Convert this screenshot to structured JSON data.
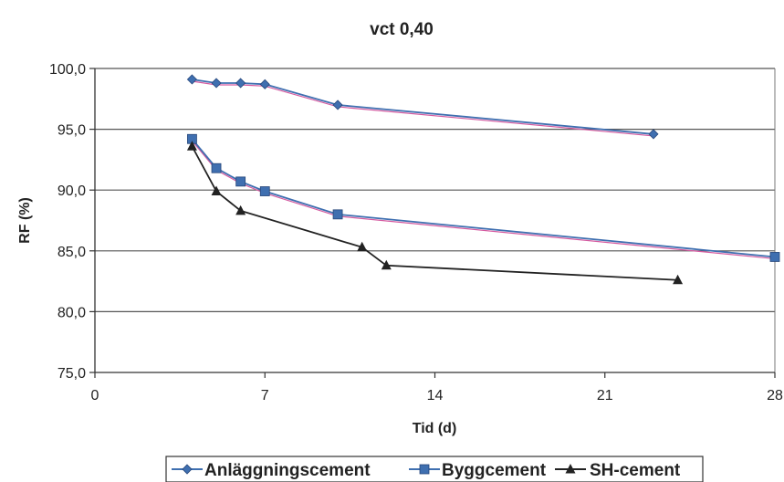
{
  "chart_data": {
    "type": "line",
    "title": "vct 0,40",
    "xlabel": "Tid (d)",
    "ylabel": "RF (%)",
    "xlim": [
      0,
      28
    ],
    "ylim": [
      75,
      100
    ],
    "x_ticks": [
      "0",
      "7",
      "14",
      "21",
      "28"
    ],
    "y_ticks": [
      "75,0",
      "80,0",
      "85,0",
      "90,0",
      "95,0",
      "100,0"
    ],
    "grid": "horizontal",
    "legend_position": "bottom",
    "series": [
      {
        "name": "Anläggningscement",
        "marker": "diamond",
        "color": "#3f6fb0",
        "x": [
          4,
          5,
          6,
          7,
          10,
          23
        ],
        "y": [
          99.1,
          98.8,
          98.8,
          98.7,
          97.0,
          94.6
        ]
      },
      {
        "name": "Byggcement",
        "marker": "square",
        "color": "#3f6fb0",
        "x": [
          4,
          5,
          6,
          7,
          10,
          28
        ],
        "y": [
          94.2,
          91.8,
          90.7,
          89.9,
          88.0,
          84.5
        ]
      },
      {
        "name": "SH-cement",
        "marker": "triangle",
        "color": "#222222",
        "x": [
          4,
          5,
          6,
          11,
          12,
          24
        ],
        "y": [
          93.6,
          89.9,
          88.3,
          85.3,
          83.8,
          82.6
        ]
      }
    ]
  }
}
